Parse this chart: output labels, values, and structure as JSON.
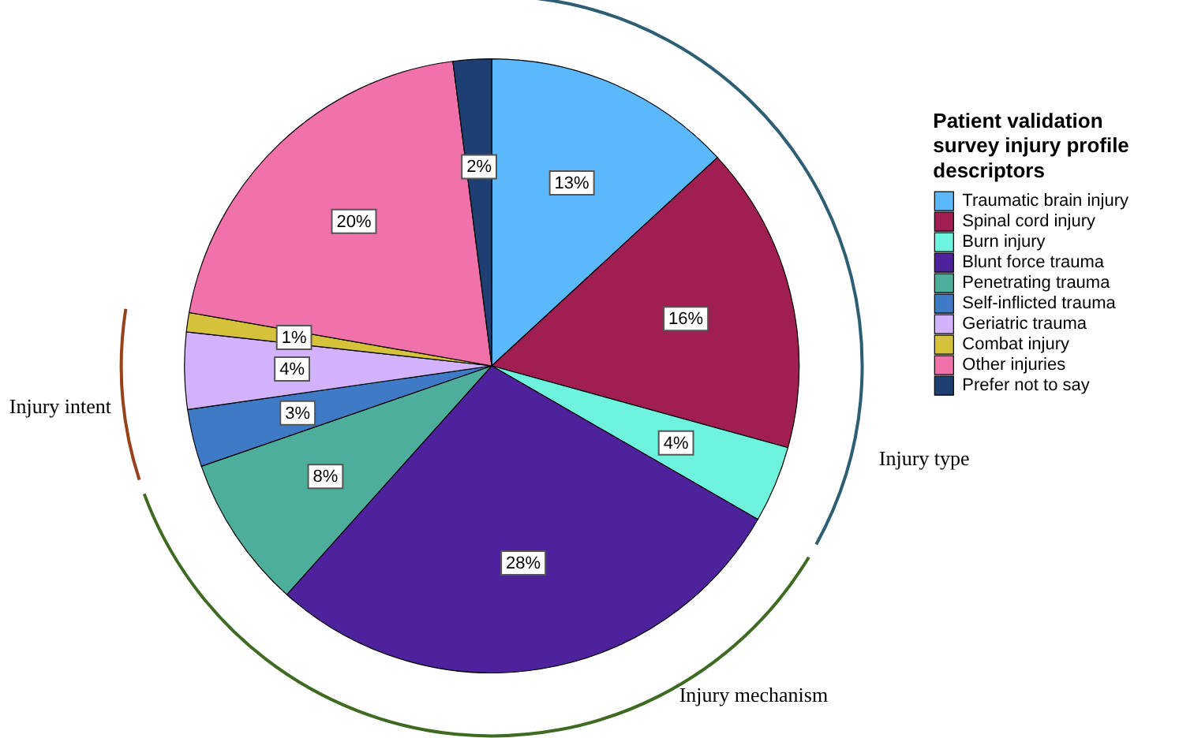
{
  "chart_data": {
    "type": "pie",
    "legend_title": "Patient validation survey injury profile descriptors",
    "categories": [
      "Traumatic brain injury",
      "Spinal cord injury",
      "Burn injury",
      "Blunt force trauma",
      "Penetrating trauma",
      "Self-inflicted trauma",
      "Geriatric trauma",
      "Combat injury",
      "Other injuries",
      "Prefer not to say"
    ],
    "values": [
      13,
      16,
      4,
      28,
      8,
      3,
      4,
      1,
      20,
      2
    ],
    "value_labels": [
      "13%",
      "16%",
      "4%",
      "28%",
      "8%",
      "3%",
      "4%",
      "1%",
      "20%",
      "2%"
    ],
    "colors": [
      "#5cb8fc",
      "#a01e52",
      "#6ef2dd",
      "#4e229c",
      "#4daf9b",
      "#3e7ac6",
      "#d2b3fb",
      "#d5c23a",
      "#f172ab",
      "#1f3f72"
    ],
    "legend": "right",
    "annotations": [
      "Injury type",
      "Injury mechanism",
      "Injury intent"
    ]
  }
}
